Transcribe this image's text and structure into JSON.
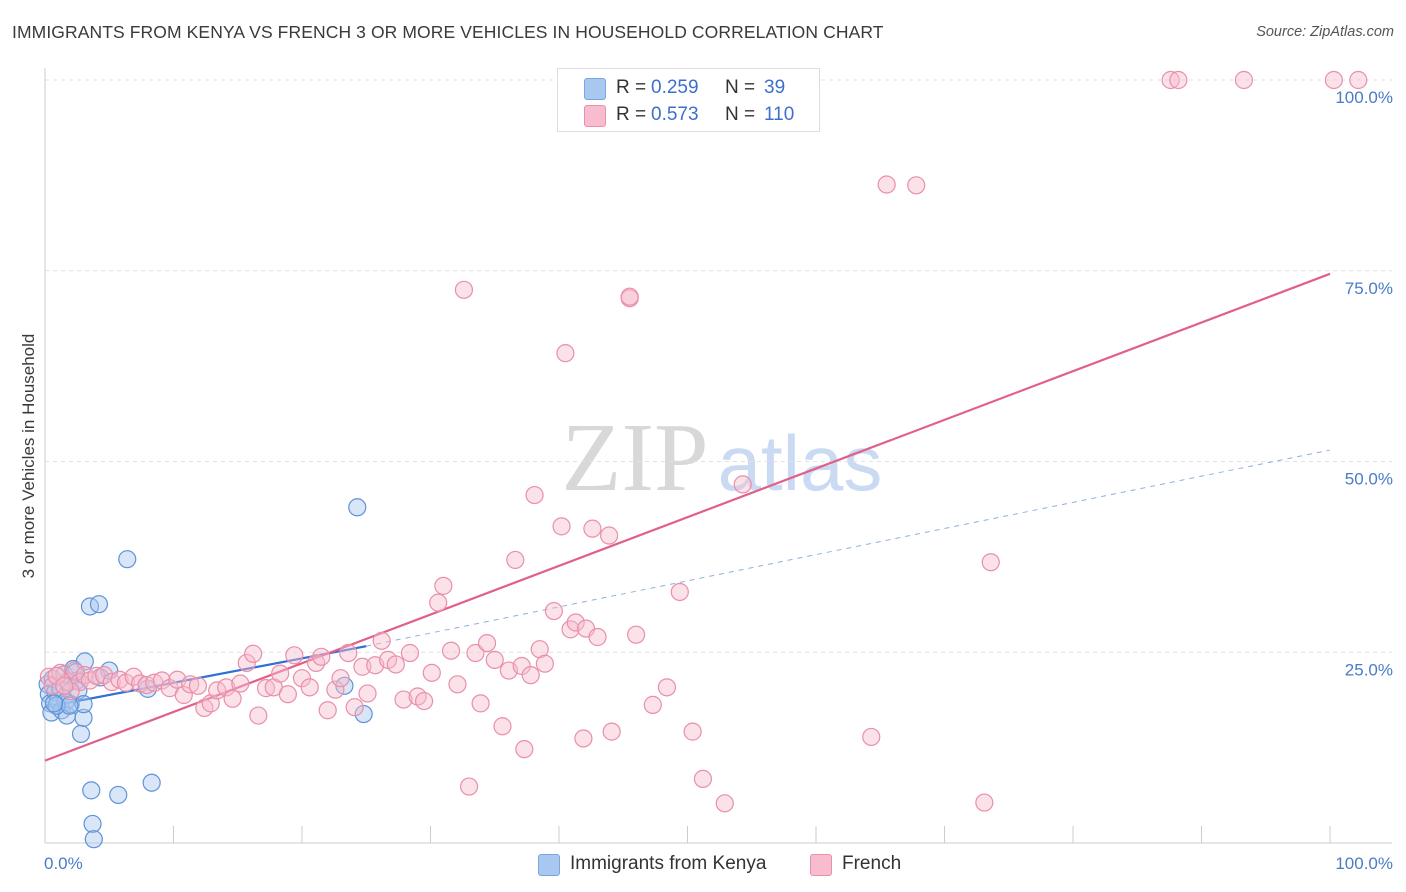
{
  "title": "IMMIGRANTS FROM KENYA VS FRENCH 3 OR MORE VEHICLES IN HOUSEHOLD CORRELATION CHART",
  "source": "Source: ZipAtlas.com",
  "watermark": {
    "zip": "ZIP",
    "atlas": "atlas"
  },
  "legend": {
    "rows": [
      {
        "r_label": "R =",
        "r_value": "0.259",
        "n_label": "N =",
        "n_value": "39",
        "color": "#a9c8f0",
        "border": "#7aa6e0"
      },
      {
        "r_label": "R =",
        "r_value": "0.573",
        "n_label": "N =",
        "n_value": "110",
        "color": "#f7bccd",
        "border": "#e98fab"
      }
    ]
  },
  "bottom_legend": {
    "kenya": "Immigrants from Kenya",
    "french": "French"
  },
  "chart_data": {
    "type": "scatter",
    "title": "IMMIGRANTS FROM KENYA VS FRENCH 3 OR MORE VEHICLES IN HOUSEHOLD CORRELATION CHART",
    "xlabel": "",
    "ylabel": "3 or more Vehicles in Household",
    "xlim": [
      0,
      100
    ],
    "ylim": [
      0,
      100
    ],
    "x_tick_labels": [
      "0.0%",
      "100.0%"
    ],
    "y_tick_labels": [
      {
        "value": 100,
        "label": "100.0%"
      },
      {
        "value": 75,
        "label": "75.0%"
      },
      {
        "value": 50,
        "label": "50.0%"
      },
      {
        "value": 25,
        "label": "25.0%"
      }
    ],
    "series": [
      {
        "name": "Immigrants from Kenya",
        "color": "#a9c8f0",
        "stroke": "#5f93d8",
        "trend": {
          "x0": 0,
          "y0": 17.8,
          "x1": 25,
          "y1": 25.8,
          "dash_to_x": 100,
          "dash_to_y": 51.5,
          "color": "#2f6fd6"
        },
        "points": [
          [
            0.2,
            20.8
          ],
          [
            0.3,
            19.5
          ],
          [
            0.4,
            18.3
          ],
          [
            0.5,
            17.1
          ],
          [
            0.6,
            21.5
          ],
          [
            0.8,
            19.8
          ],
          [
            1,
            18.6
          ],
          [
            1.2,
            20.2
          ],
          [
            1.3,
            17.4
          ],
          [
            1.5,
            22.1
          ],
          [
            1.6,
            18.5
          ],
          [
            1.7,
            16.7
          ],
          [
            1.8,
            21.0
          ],
          [
            2.0,
            18.2
          ],
          [
            2.2,
            22.8
          ],
          [
            2.5,
            21.3
          ],
          [
            2.6,
            20.0
          ],
          [
            2.8,
            14.3
          ],
          [
            3.0,
            16.4
          ],
          [
            3.0,
            18.2
          ],
          [
            3.1,
            23.8
          ],
          [
            3.5,
            31.0
          ],
          [
            3.6,
            6.9
          ],
          [
            3.7,
            2.5
          ],
          [
            3.8,
            0.5
          ],
          [
            4.2,
            31.3
          ],
          [
            4.3,
            21.7
          ],
          [
            5.0,
            22.6
          ],
          [
            5.7,
            6.3
          ],
          [
            6.4,
            37.2
          ],
          [
            8.3,
            7.9
          ],
          [
            8.0,
            20.2
          ],
          [
            23.3,
            20.6
          ],
          [
            24.3,
            44.0
          ],
          [
            24.8,
            16.9
          ],
          [
            0.9,
            18.0
          ],
          [
            1.9,
            18.0
          ],
          [
            2.4,
            22.4
          ],
          [
            0.7,
            18.3
          ]
        ]
      },
      {
        "name": "French",
        "color": "#f7bccd",
        "stroke": "#e98fab",
        "trend": {
          "x0": 0,
          "y0": 10.8,
          "x1": 100,
          "y1": 74.6,
          "color": "#e0608a"
        },
        "points": [
          [
            0.3,
            21.8
          ],
          [
            0.6,
            20.6
          ],
          [
            1.2,
            22.3
          ],
          [
            1.8,
            21.2
          ],
          [
            2.3,
            22.6
          ],
          [
            2.7,
            21.1
          ],
          [
            3.1,
            22.0
          ],
          [
            3.5,
            21.3
          ],
          [
            4.0,
            21.9
          ],
          [
            4.6,
            22.0
          ],
          [
            5.2,
            21.1
          ],
          [
            5.8,
            21.4
          ],
          [
            6.3,
            21.0
          ],
          [
            6.9,
            21.8
          ],
          [
            7.4,
            20.9
          ],
          [
            7.9,
            20.7
          ],
          [
            8.5,
            21.0
          ],
          [
            9.1,
            21.3
          ],
          [
            9.7,
            20.3
          ],
          [
            10.3,
            21.4
          ],
          [
            10.8,
            19.4
          ],
          [
            11.3,
            20.8
          ],
          [
            11.9,
            20.6
          ],
          [
            12.4,
            17.7
          ],
          [
            12.9,
            18.3
          ],
          [
            13.4,
            20.0
          ],
          [
            14.1,
            20.4
          ],
          [
            14.6,
            18.9
          ],
          [
            15.2,
            20.9
          ],
          [
            15.7,
            23.6
          ],
          [
            16.2,
            24.8
          ],
          [
            16.6,
            16.7
          ],
          [
            17.2,
            20.3
          ],
          [
            17.8,
            20.4
          ],
          [
            18.3,
            22.2
          ],
          [
            18.9,
            19.5
          ],
          [
            19.4,
            24.6
          ],
          [
            20.0,
            21.6
          ],
          [
            20.6,
            20.4
          ],
          [
            21.1,
            23.6
          ],
          [
            21.5,
            24.4
          ],
          [
            22.0,
            17.4
          ],
          [
            22.6,
            20.1
          ],
          [
            23.0,
            21.6
          ],
          [
            23.6,
            24.9
          ],
          [
            24.1,
            17.8
          ],
          [
            24.7,
            23.1
          ],
          [
            25.1,
            19.6
          ],
          [
            25.7,
            23.3
          ],
          [
            26.2,
            26.5
          ],
          [
            26.7,
            24.0
          ],
          [
            27.3,
            23.4
          ],
          [
            27.9,
            18.8
          ],
          [
            28.4,
            24.9
          ],
          [
            29.0,
            19.2
          ],
          [
            29.5,
            18.6
          ],
          [
            30.1,
            22.3
          ],
          [
            30.6,
            31.5
          ],
          [
            31.0,
            33.7
          ],
          [
            31.6,
            25.2
          ],
          [
            32.1,
            20.8
          ],
          [
            32.6,
            72.5
          ],
          [
            33.0,
            7.4
          ],
          [
            33.5,
            24.9
          ],
          [
            33.9,
            18.3
          ],
          [
            34.4,
            26.2
          ],
          [
            35.0,
            24.0
          ],
          [
            35.6,
            15.3
          ],
          [
            36.1,
            22.6
          ],
          [
            36.6,
            37.1
          ],
          [
            37.1,
            23.2
          ],
          [
            37.3,
            12.3
          ],
          [
            37.8,
            22.0
          ],
          [
            38.1,
            45.6
          ],
          [
            38.5,
            25.4
          ],
          [
            38.9,
            23.5
          ],
          [
            39.6,
            30.4
          ],
          [
            40.2,
            41.5
          ],
          [
            40.5,
            64.2
          ],
          [
            40.9,
            28.0
          ],
          [
            41.3,
            28.9
          ],
          [
            41.9,
            13.7
          ],
          [
            42.1,
            28.1
          ],
          [
            42.6,
            41.2
          ],
          [
            43.0,
            27.0
          ],
          [
            43.9,
            40.3
          ],
          [
            44.1,
            14.6
          ],
          [
            45.5,
            71.4
          ],
          [
            45.5,
            71.6
          ],
          [
            46.0,
            27.3
          ],
          [
            47.3,
            18.1
          ],
          [
            48.4,
            20.4
          ],
          [
            49.4,
            32.9
          ],
          [
            50.4,
            14.6
          ],
          [
            51.2,
            8.4
          ],
          [
            52.9,
            5.2
          ],
          [
            54.3,
            47.0
          ],
          [
            64.3,
            13.9
          ],
          [
            65.5,
            86.3
          ],
          [
            67.8,
            86.2
          ],
          [
            73.1,
            5.3
          ],
          [
            73.6,
            36.8
          ],
          [
            87.6,
            100
          ],
          [
            88.2,
            100
          ],
          [
            93.3,
            100
          ],
          [
            100.3,
            100
          ],
          [
            102.2,
            100
          ],
          [
            0.9,
            21.9
          ],
          [
            2.0,
            19.9
          ],
          [
            1.5,
            20.6
          ]
        ]
      }
    ]
  }
}
